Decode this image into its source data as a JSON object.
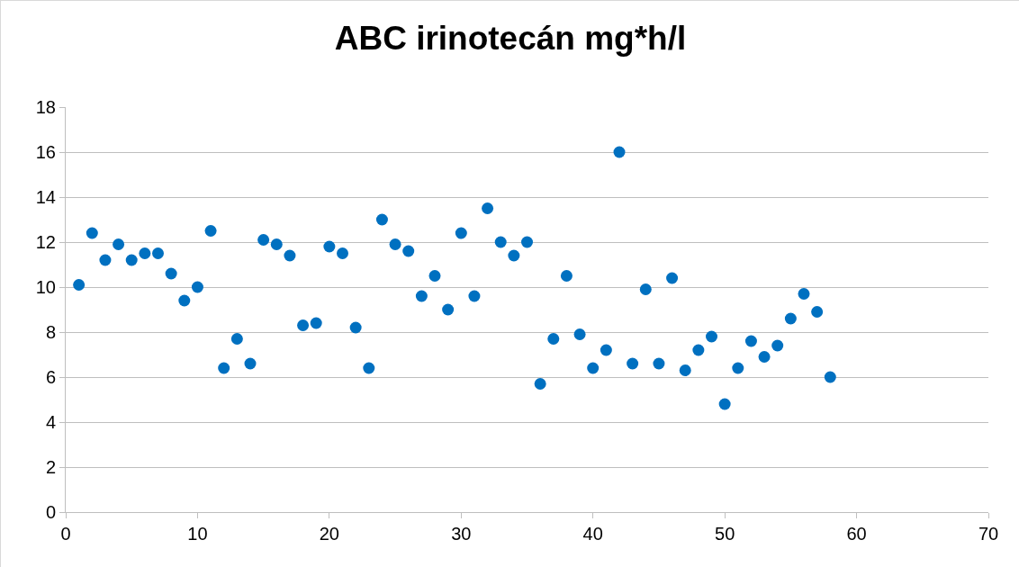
{
  "chart_data": {
    "type": "scatter",
    "title": "ABC irinotecán mg*h/l",
    "x": [
      1,
      2,
      3,
      4,
      5,
      6,
      7,
      8,
      9,
      10,
      11,
      12,
      13,
      14,
      15,
      16,
      17,
      18,
      19,
      20,
      21,
      22,
      23,
      24,
      25,
      26,
      27,
      28,
      29,
      30,
      31,
      32,
      33,
      34,
      35,
      36,
      37,
      38,
      39,
      40,
      41,
      42,
      43,
      44,
      45,
      46,
      47,
      48,
      49,
      50,
      51,
      52,
      53,
      54,
      55,
      56,
      57,
      58
    ],
    "values": [
      10.1,
      12.4,
      11.2,
      11.9,
      11.2,
      11.5,
      11.5,
      10.6,
      9.4,
      10.0,
      12.5,
      6.4,
      7.7,
      6.6,
      12.1,
      11.9,
      11.4,
      8.3,
      8.4,
      11.8,
      11.5,
      8.2,
      6.4,
      13.0,
      11.9,
      11.6,
      9.6,
      10.5,
      9.0,
      12.4,
      9.6,
      13.5,
      12.0,
      11.4,
      12.0,
      5.7,
      7.7,
      10.5,
      7.9,
      6.4,
      7.2,
      16.0,
      6.6,
      9.9,
      6.6,
      10.4,
      6.3,
      7.2,
      7.8,
      4.8,
      6.4,
      7.6,
      6.9,
      7.4,
      8.6,
      9.7,
      8.9,
      6.0
    ],
    "color": "#0070c0",
    "marker": "circle",
    "xlim": [
      0,
      70
    ],
    "xticks": [
      0,
      10,
      20,
      30,
      40,
      50,
      60,
      70
    ],
    "ylim": [
      0,
      18
    ],
    "yticks": [
      0,
      2,
      4,
      6,
      8,
      10,
      12,
      14,
      16,
      18
    ],
    "grid": "y",
    "legend": false
  }
}
